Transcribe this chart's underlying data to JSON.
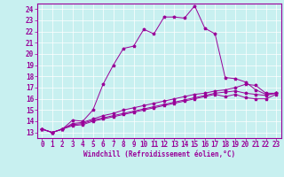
{
  "title": "",
  "xlabel": "Windchill (Refroidissement éolien,°C)",
  "bg_color": "#c8f0f0",
  "line_color": "#990099",
  "grid_color": "#ffffff",
  "x_ticks": [
    0,
    1,
    2,
    3,
    4,
    5,
    6,
    7,
    8,
    9,
    10,
    11,
    12,
    13,
    14,
    15,
    16,
    17,
    18,
    19,
    20,
    21,
    22,
    23
  ],
  "y_ticks": [
    13,
    14,
    15,
    16,
    17,
    18,
    19,
    20,
    21,
    22,
    23,
    24
  ],
  "ylim": [
    12.5,
    24.5
  ],
  "xlim": [
    -0.5,
    23.5
  ],
  "line1_y": [
    13.3,
    13.0,
    13.3,
    14.1,
    14.0,
    15.0,
    17.3,
    19.0,
    20.5,
    20.7,
    22.2,
    21.8,
    23.3,
    23.3,
    23.2,
    24.3,
    22.3,
    21.8,
    17.9,
    17.8,
    17.5,
    16.8,
    16.4,
    16.5
  ],
  "line2_y": [
    13.3,
    13.0,
    13.3,
    13.8,
    13.9,
    14.2,
    14.5,
    14.7,
    15.0,
    15.2,
    15.4,
    15.6,
    15.8,
    16.0,
    16.2,
    16.4,
    16.5,
    16.7,
    16.8,
    17.0,
    17.3,
    17.2,
    16.5,
    16.5
  ],
  "line3_y": [
    13.3,
    13.0,
    13.3,
    13.7,
    13.8,
    14.1,
    14.3,
    14.5,
    14.7,
    14.9,
    15.1,
    15.3,
    15.5,
    15.7,
    15.9,
    16.1,
    16.3,
    16.5,
    16.6,
    16.7,
    16.5,
    16.4,
    16.3,
    16.5
  ],
  "line4_y": [
    13.3,
    13.0,
    13.3,
    13.6,
    13.7,
    14.0,
    14.2,
    14.4,
    14.6,
    14.8,
    15.0,
    15.2,
    15.4,
    15.6,
    15.8,
    16.0,
    16.2,
    16.4,
    16.2,
    16.4,
    16.1,
    16.0,
    16.0,
    16.4
  ],
  "x_ticklabels": [
    "0",
    "1",
    "2",
    "3",
    "4",
    "5",
    "6",
    "7",
    "8",
    "9",
    "10",
    "11",
    "12",
    "13",
    "14",
    "15",
    "16",
    "17",
    "18",
    "19",
    "20",
    "21",
    "22",
    "23"
  ],
  "tick_fontsize": 5.5,
  "xlabel_fontsize": 5.5
}
